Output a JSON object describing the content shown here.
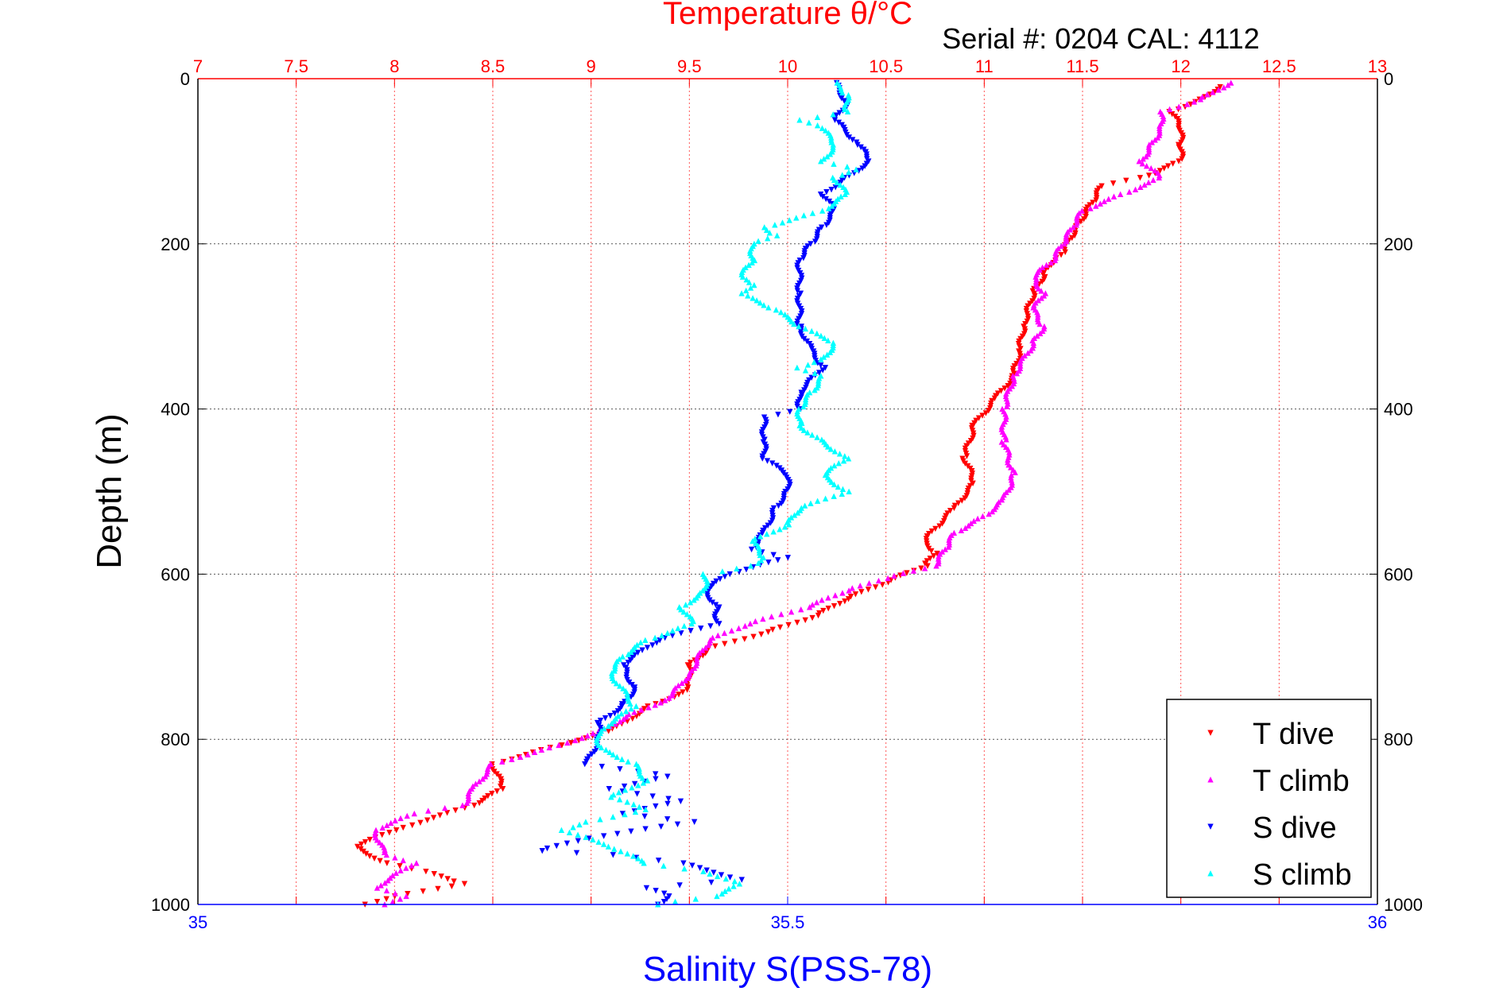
{
  "chart_data": {
    "type": "scatter",
    "title": "Temperature θ/°C",
    "subtitle": "Serial #: 0204  CAL: 4112",
    "ylabel": "Depth (m)",
    "x_top_label": "Temperature θ/°C",
    "x_bottom_label": "Salinity S(PSS-78)",
    "top_axis": {
      "range": [
        7,
        13
      ],
      "ticks": [
        "7",
        "7.5",
        "8",
        "8.5",
        "9",
        "9.5",
        "10",
        "10.5",
        "11",
        "11.5",
        "12",
        "12.5",
        "13"
      ],
      "color": "#ff0000"
    },
    "bottom_axis": {
      "range": [
        35,
        36
      ],
      "ticks": [
        "35",
        "35.5",
        "36"
      ],
      "color": "#0000ff"
    },
    "y_axis": {
      "range": [
        0,
        1000
      ],
      "reversed": true,
      "ticks": [
        "0",
        "200",
        "400",
        "600",
        "800",
        "1000"
      ]
    },
    "grid": true,
    "legend_position": "bottom-right",
    "series": [
      {
        "name": "T dive",
        "axis": "top",
        "marker": "triangle-down",
        "color": "#ff0000",
        "points": [
          [
            12.2,
            10
          ],
          [
            12.1,
            25
          ],
          [
            11.95,
            40
          ],
          [
            12.0,
            60
          ],
          [
            12.0,
            80
          ],
          [
            12.0,
            100
          ],
          [
            11.8,
            120
          ],
          [
            11.6,
            130
          ],
          [
            11.55,
            150
          ],
          [
            11.5,
            170
          ],
          [
            11.45,
            190
          ],
          [
            11.4,
            210
          ],
          [
            11.35,
            220
          ],
          [
            11.3,
            240
          ],
          [
            11.25,
            260
          ],
          [
            11.2,
            300
          ],
          [
            11.18,
            330
          ],
          [
            11.15,
            360
          ],
          [
            11.05,
            390
          ],
          [
            10.95,
            420
          ],
          [
            10.9,
            460
          ],
          [
            10.95,
            490
          ],
          [
            10.85,
            520
          ],
          [
            10.75,
            545
          ],
          [
            10.7,
            560
          ],
          [
            10.75,
            575
          ],
          [
            10.7,
            590
          ],
          [
            10.5,
            610
          ],
          [
            10.3,
            630
          ],
          [
            10.15,
            650
          ],
          [
            9.9,
            670
          ],
          [
            9.6,
            690
          ],
          [
            9.5,
            710
          ],
          [
            9.5,
            740
          ],
          [
            9.3,
            760
          ],
          [
            9.1,
            790
          ],
          [
            8.8,
            810
          ],
          [
            8.5,
            830
          ],
          [
            8.55,
            860
          ],
          [
            8.4,
            880
          ],
          [
            8.0,
            910
          ],
          [
            7.8,
            930
          ],
          [
            7.95,
            950
          ],
          [
            8.15,
            960
          ],
          [
            8.35,
            975
          ],
          [
            8.0,
            990
          ],
          [
            7.85,
            1000
          ]
        ]
      },
      {
        "name": "T climb",
        "axis": "top",
        "marker": "triangle-up",
        "color": "#ff00ff",
        "points": [
          [
            12.25,
            5
          ],
          [
            12.1,
            25
          ],
          [
            11.9,
            40
          ],
          [
            11.9,
            60
          ],
          [
            11.85,
            80
          ],
          [
            11.8,
            100
          ],
          [
            11.9,
            120
          ],
          [
            11.7,
            140
          ],
          [
            11.5,
            160
          ],
          [
            11.45,
            180
          ],
          [
            11.4,
            200
          ],
          [
            11.35,
            220
          ],
          [
            11.25,
            240
          ],
          [
            11.3,
            260
          ],
          [
            11.25,
            280
          ],
          [
            11.3,
            300
          ],
          [
            11.25,
            320
          ],
          [
            11.15,
            360
          ],
          [
            11.1,
            400
          ],
          [
            11.1,
            440
          ],
          [
            11.15,
            480
          ],
          [
            11.1,
            510
          ],
          [
            11.0,
            530
          ],
          [
            10.85,
            550
          ],
          [
            10.8,
            570
          ],
          [
            10.75,
            590
          ],
          [
            10.5,
            605
          ],
          [
            10.3,
            620
          ],
          [
            10.1,
            640
          ],
          [
            9.8,
            660
          ],
          [
            9.6,
            680
          ],
          [
            9.5,
            720
          ],
          [
            9.4,
            750
          ],
          [
            9.2,
            770
          ],
          [
            9.05,
            790
          ],
          [
            8.8,
            810
          ],
          [
            8.5,
            830
          ],
          [
            8.4,
            860
          ],
          [
            8.35,
            880
          ],
          [
            8.1,
            890
          ],
          [
            7.9,
            910
          ],
          [
            7.95,
            940
          ],
          [
            8.1,
            950
          ],
          [
            7.9,
            980
          ],
          [
            8.05,
            990
          ],
          [
            7.95,
            1000
          ]
        ]
      },
      {
        "name": "S dive",
        "axis": "bottom",
        "marker": "triangle-down",
        "color": "#0000ff",
        "points": [
          [
            35.54,
            5
          ],
          [
            35.55,
            30
          ],
          [
            35.54,
            50
          ],
          [
            35.56,
            80
          ],
          [
            35.57,
            100
          ],
          [
            35.55,
            120
          ],
          [
            35.53,
            140
          ],
          [
            35.54,
            160
          ],
          [
            35.53,
            180
          ],
          [
            35.52,
            200
          ],
          [
            35.51,
            220
          ],
          [
            35.51,
            260
          ],
          [
            35.51,
            300
          ],
          [
            35.52,
            330
          ],
          [
            35.53,
            350
          ],
          [
            35.51,
            380
          ],
          [
            35.51,
            400
          ],
          [
            35.48,
            410
          ],
          [
            35.48,
            440
          ],
          [
            35.48,
            460
          ],
          [
            35.5,
            480
          ],
          [
            35.5,
            500
          ],
          [
            35.49,
            520
          ],
          [
            35.48,
            550
          ],
          [
            35.47,
            570
          ],
          [
            35.5,
            580
          ],
          [
            35.45,
            600
          ],
          [
            35.43,
            620
          ],
          [
            35.44,
            640
          ],
          [
            35.44,
            660
          ],
          [
            35.39,
            680
          ],
          [
            35.36,
            710
          ],
          [
            35.37,
            740
          ],
          [
            35.36,
            760
          ],
          [
            35.34,
            780
          ],
          [
            35.34,
            800
          ],
          [
            35.33,
            830
          ],
          [
            35.4,
            845
          ],
          [
            35.35,
            860
          ],
          [
            35.41,
            875
          ],
          [
            35.36,
            890
          ],
          [
            35.42,
            900
          ],
          [
            35.33,
            920
          ],
          [
            35.29,
            935
          ],
          [
            35.35,
            940
          ],
          [
            35.41,
            950
          ],
          [
            35.46,
            970
          ],
          [
            35.38,
            980
          ],
          [
            35.4,
            990
          ],
          [
            35.39,
            1000
          ]
        ]
      },
      {
        "name": "S climb",
        "axis": "bottom",
        "marker": "triangle-up",
        "color": "#00ffff",
        "points": [
          [
            35.54,
            5
          ],
          [
            35.55,
            20
          ],
          [
            35.55,
            40
          ],
          [
            35.51,
            50
          ],
          [
            35.53,
            60
          ],
          [
            35.54,
            80
          ],
          [
            35.53,
            100
          ],
          [
            35.56,
            110
          ],
          [
            35.54,
            120
          ],
          [
            35.55,
            140
          ],
          [
            35.53,
            160
          ],
          [
            35.48,
            180
          ],
          [
            35.49,
            190
          ],
          [
            35.47,
            200
          ],
          [
            35.47,
            220
          ],
          [
            35.46,
            240
          ],
          [
            35.47,
            250
          ],
          [
            35.46,
            260
          ],
          [
            35.49,
            280
          ],
          [
            35.51,
            300
          ],
          [
            35.54,
            320
          ],
          [
            35.53,
            340
          ],
          [
            35.51,
            350
          ],
          [
            35.53,
            360
          ],
          [
            35.52,
            380
          ],
          [
            35.51,
            400
          ],
          [
            35.51,
            420
          ],
          [
            35.53,
            440
          ],
          [
            35.55,
            460
          ],
          [
            35.53,
            480
          ],
          [
            35.55,
            500
          ],
          [
            35.51,
            520
          ],
          [
            35.5,
            540
          ],
          [
            35.47,
            560
          ],
          [
            35.48,
            580
          ],
          [
            35.47,
            590
          ],
          [
            35.43,
            600
          ],
          [
            35.43,
            620
          ],
          [
            35.41,
            640
          ],
          [
            35.42,
            660
          ],
          [
            35.38,
            680
          ],
          [
            35.36,
            700
          ],
          [
            35.35,
            720
          ],
          [
            35.37,
            760
          ],
          [
            35.34,
            790
          ],
          [
            35.34,
            810
          ],
          [
            35.37,
            830
          ],
          [
            35.38,
            850
          ],
          [
            35.35,
            870
          ],
          [
            35.38,
            885
          ],
          [
            35.33,
            900
          ],
          [
            35.31,
            910
          ],
          [
            35.35,
            930
          ],
          [
            35.38,
            950
          ],
          [
            35.43,
            960
          ],
          [
            35.46,
            975
          ],
          [
            35.44,
            990
          ],
          [
            35.39,
            1000
          ]
        ]
      }
    ]
  }
}
